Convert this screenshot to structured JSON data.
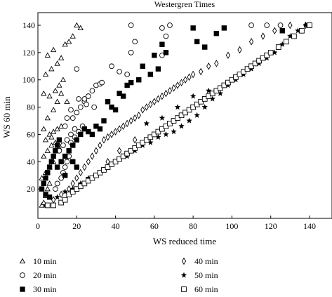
{
  "chart_data": {
    "type": "scatter",
    "title": "Westergren Times",
    "xlabel": "WS reduced time",
    "ylabel": "WS 60 min",
    "xlim": [
      0,
      145
    ],
    "ylim": [
      0,
      145
    ],
    "xticks": [
      0,
      20,
      40,
      60,
      80,
      100,
      120,
      140
    ],
    "yticks": [
      20,
      40,
      60,
      80,
      100,
      120,
      140
    ],
    "grid": false,
    "legend_position": "bottom",
    "series": [
      {
        "name": "10 min",
        "marker": "triangle",
        "points": [
          [
            2,
            8
          ],
          [
            3,
            10
          ],
          [
            4,
            15
          ],
          [
            5,
            20
          ],
          [
            6,
            24
          ],
          [
            2,
            28
          ],
          [
            4,
            32
          ],
          [
            6,
            36
          ],
          [
            8,
            40
          ],
          [
            3,
            44
          ],
          [
            5,
            48
          ],
          [
            7,
            52
          ],
          [
            4,
            56
          ],
          [
            6,
            60
          ],
          [
            8,
            62
          ],
          [
            10,
            64
          ],
          [
            12,
            66
          ],
          [
            5,
            72
          ],
          [
            8,
            78
          ],
          [
            10,
            84
          ],
          [
            6,
            88
          ],
          [
            9,
            92
          ],
          [
            11,
            96
          ],
          [
            13,
            100
          ],
          [
            4,
            104
          ],
          [
            7,
            108
          ],
          [
            10,
            112
          ],
          [
            12,
            116
          ],
          [
            5,
            118
          ],
          [
            8,
            122
          ],
          [
            14,
            126
          ],
          [
            18,
            132
          ],
          [
            20,
            140
          ],
          [
            22,
            138
          ],
          [
            16,
            128
          ],
          [
            3,
            64
          ],
          [
            7,
            58
          ],
          [
            9,
            54
          ],
          [
            11,
            50
          ],
          [
            3,
            90
          ],
          [
            12,
            90
          ],
          [
            15,
            84
          ]
        ]
      },
      {
        "name": "20 min",
        "marker": "circle",
        "points": [
          [
            9,
            20
          ],
          [
            10,
            24
          ],
          [
            12,
            28
          ],
          [
            13,
            32
          ],
          [
            14,
            36
          ],
          [
            15,
            40
          ],
          [
            16,
            44
          ],
          [
            11,
            48
          ],
          [
            13,
            52
          ],
          [
            15,
            56
          ],
          [
            17,
            60
          ],
          [
            19,
            64
          ],
          [
            14,
            66
          ],
          [
            17,
            54
          ],
          [
            19,
            58
          ],
          [
            21,
            62
          ],
          [
            23,
            66
          ],
          [
            18,
            72
          ],
          [
            20,
            76
          ],
          [
            22,
            80
          ],
          [
            24,
            84
          ],
          [
            26,
            88
          ],
          [
            28,
            92
          ],
          [
            30,
            96
          ],
          [
            32,
            97
          ],
          [
            21,
            86
          ],
          [
            25,
            82
          ],
          [
            29,
            80
          ],
          [
            33,
            98
          ],
          [
            38,
            110
          ],
          [
            42,
            106
          ],
          [
            46,
            104
          ],
          [
            48,
            120
          ],
          [
            50,
            128
          ],
          [
            48,
            140
          ],
          [
            64,
            138
          ],
          [
            66,
            132
          ],
          [
            64,
            118
          ],
          [
            68,
            140
          ],
          [
            110,
            140
          ],
          [
            118,
            140
          ],
          [
            125,
            140
          ],
          [
            20,
            108
          ],
          [
            24,
            86
          ],
          [
            15,
            72
          ],
          [
            17,
            78
          ]
        ]
      },
      {
        "name": "30 min",
        "marker": "square",
        "points": [
          [
            2,
            20
          ],
          [
            3,
            24
          ],
          [
            4,
            28
          ],
          [
            5,
            32
          ],
          [
            6,
            36
          ],
          [
            7,
            40
          ],
          [
            8,
            44
          ],
          [
            9,
            48
          ],
          [
            10,
            52
          ],
          [
            11,
            56
          ],
          [
            12,
            40
          ],
          [
            14,
            44
          ],
          [
            16,
            48
          ],
          [
            18,
            52
          ],
          [
            20,
            56
          ],
          [
            22,
            60
          ],
          [
            24,
            64
          ],
          [
            26,
            62
          ],
          [
            28,
            60
          ],
          [
            30,
            66
          ],
          [
            32,
            64
          ],
          [
            34,
            70
          ],
          [
            36,
            84
          ],
          [
            38,
            80
          ],
          [
            40,
            78
          ],
          [
            42,
            90
          ],
          [
            44,
            88
          ],
          [
            46,
            96
          ],
          [
            48,
            98
          ],
          [
            52,
            100
          ],
          [
            54,
            110
          ],
          [
            58,
            104
          ],
          [
            60,
            118
          ],
          [
            62,
            108
          ],
          [
            64,
            126
          ],
          [
            66,
            120
          ],
          [
            80,
            138
          ],
          [
            82,
            128
          ],
          [
            86,
            124
          ],
          [
            92,
            134
          ],
          [
            96,
            138
          ],
          [
            126,
            136
          ],
          [
            140,
            140
          ],
          [
            4,
            16
          ],
          [
            6,
            14
          ],
          [
            10,
            36
          ],
          [
            14,
            30
          ],
          [
            18,
            40
          ],
          [
            20,
            36
          ]
        ]
      },
      {
        "name": "40 min",
        "marker": "diamond",
        "points": [
          [
            8,
            12
          ],
          [
            12,
            16
          ],
          [
            16,
            20
          ],
          [
            18,
            24
          ],
          [
            20,
            28
          ],
          [
            22,
            32
          ],
          [
            24,
            36
          ],
          [
            26,
            40
          ],
          [
            28,
            44
          ],
          [
            30,
            48
          ],
          [
            32,
            52
          ],
          [
            34,
            56
          ],
          [
            36,
            58
          ],
          [
            38,
            60
          ],
          [
            40,
            62
          ],
          [
            42,
            64
          ],
          [
            44,
            66
          ],
          [
            46,
            68
          ],
          [
            48,
            70
          ],
          [
            50,
            72
          ],
          [
            52,
            74
          ],
          [
            54,
            78
          ],
          [
            56,
            80
          ],
          [
            58,
            82
          ],
          [
            60,
            84
          ],
          [
            62,
            86
          ],
          [
            64,
            88
          ],
          [
            66,
            90
          ],
          [
            68,
            92
          ],
          [
            70,
            94
          ],
          [
            72,
            96
          ],
          [
            74,
            98
          ],
          [
            76,
            100
          ],
          [
            78,
            102
          ],
          [
            80,
            104
          ],
          [
            84,
            106
          ],
          [
            88,
            110
          ],
          [
            92,
            112
          ],
          [
            98,
            118
          ],
          [
            104,
            122
          ],
          [
            110,
            128
          ],
          [
            116,
            132
          ],
          [
            122,
            136
          ],
          [
            130,
            140
          ],
          [
            138,
            140
          ],
          [
            36,
            40
          ],
          [
            42,
            48
          ],
          [
            50,
            56
          ]
        ]
      },
      {
        "name": "50 min",
        "marker": "star",
        "points": [
          [
            4,
            8
          ],
          [
            10,
            14
          ],
          [
            14,
            18
          ],
          [
            18,
            20
          ],
          [
            22,
            24
          ],
          [
            26,
            28
          ],
          [
            30,
            30
          ],
          [
            34,
            34
          ],
          [
            38,
            38
          ],
          [
            42,
            42
          ],
          [
            46,
            44
          ],
          [
            50,
            48
          ],
          [
            54,
            52
          ],
          [
            58,
            54
          ],
          [
            62,
            58
          ],
          [
            66,
            60
          ],
          [
            70,
            62
          ],
          [
            74,
            66
          ],
          [
            78,
            70
          ],
          [
            82,
            74
          ],
          [
            86,
            80
          ],
          [
            90,
            86
          ],
          [
            94,
            90
          ],
          [
            98,
            96
          ],
          [
            102,
            100
          ],
          [
            106,
            104
          ],
          [
            110,
            108
          ],
          [
            114,
            112
          ],
          [
            118,
            116
          ],
          [
            122,
            120
          ],
          [
            126,
            126
          ],
          [
            130,
            132
          ],
          [
            134,
            136
          ],
          [
            138,
            140
          ],
          [
            56,
            68
          ],
          [
            64,
            72
          ],
          [
            72,
            80
          ],
          [
            80,
            88
          ],
          [
            88,
            92
          ]
        ]
      },
      {
        "name": "60 min",
        "marker": "open-square",
        "points": [
          [
            5,
            8
          ],
          [
            8,
            8
          ],
          [
            12,
            10
          ],
          [
            14,
            12
          ],
          [
            16,
            16
          ],
          [
            18,
            18
          ],
          [
            20,
            20
          ],
          [
            22,
            22
          ],
          [
            24,
            24
          ],
          [
            26,
            26
          ],
          [
            28,
            28
          ],
          [
            30,
            30
          ],
          [
            32,
            32
          ],
          [
            34,
            34
          ],
          [
            36,
            36
          ],
          [
            38,
            38
          ],
          [
            40,
            40
          ],
          [
            42,
            42
          ],
          [
            44,
            44
          ],
          [
            46,
            46
          ],
          [
            48,
            48
          ],
          [
            50,
            50
          ],
          [
            52,
            52
          ],
          [
            54,
            54
          ],
          [
            56,
            56
          ],
          [
            58,
            58
          ],
          [
            60,
            60
          ],
          [
            62,
            62
          ],
          [
            64,
            64
          ],
          [
            66,
            66
          ],
          [
            68,
            68
          ],
          [
            70,
            70
          ],
          [
            72,
            72
          ],
          [
            74,
            74
          ],
          [
            76,
            76
          ],
          [
            78,
            78
          ],
          [
            80,
            80
          ],
          [
            82,
            82
          ],
          [
            84,
            84
          ],
          [
            86,
            86
          ],
          [
            88,
            88
          ],
          [
            90,
            90
          ],
          [
            92,
            92
          ],
          [
            94,
            94
          ],
          [
            96,
            96
          ],
          [
            98,
            98
          ],
          [
            100,
            100
          ],
          [
            102,
            102
          ],
          [
            104,
            104
          ],
          [
            106,
            106
          ],
          [
            108,
            108
          ],
          [
            110,
            110
          ],
          [
            112,
            112
          ],
          [
            114,
            114
          ],
          [
            116,
            116
          ],
          [
            118,
            118
          ],
          [
            120,
            120
          ],
          [
            124,
            124
          ],
          [
            128,
            128
          ],
          [
            132,
            132
          ],
          [
            136,
            136
          ],
          [
            140,
            140
          ]
        ]
      }
    ]
  }
}
